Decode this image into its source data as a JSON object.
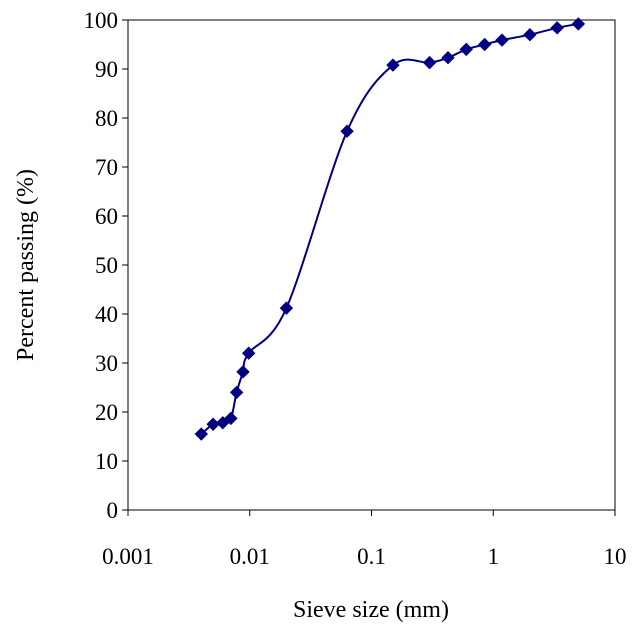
{
  "chart_data": {
    "type": "scatter",
    "title": "",
    "xlabel": "Sieve size (mm)",
    "ylabel": "Percent passing (%)",
    "x_scale": "log",
    "xlim": [
      0.001,
      10
    ],
    "ylim": [
      0,
      100
    ],
    "x_ticks": [
      0.001,
      0.01,
      0.1,
      1,
      10
    ],
    "x_tick_labels": [
      "0.001",
      "0.01",
      "0.1",
      "1",
      "10"
    ],
    "y_ticks": [
      0,
      10,
      20,
      30,
      40,
      50,
      60,
      70,
      80,
      90,
      100
    ],
    "y_tick_labels": [
      "0",
      "10",
      "20",
      "30",
      "40",
      "50",
      "60",
      "70",
      "80",
      "90",
      "100"
    ],
    "grid": false,
    "legend": "none",
    "marker": "diamond",
    "smooth_line": true,
    "series": [
      {
        "color": "#000080",
        "points": [
          {
            "x": 0.004,
            "y": 15.5
          },
          {
            "x": 0.005,
            "y": 17.5
          },
          {
            "x": 0.006,
            "y": 17.8
          },
          {
            "x": 0.007,
            "y": 18.7
          },
          {
            "x": 0.0078,
            "y": 24.0
          },
          {
            "x": 0.0088,
            "y": 28.2
          },
          {
            "x": 0.0098,
            "y": 32.0
          },
          {
            "x": 0.02,
            "y": 41.2
          },
          {
            "x": 0.063,
            "y": 77.3
          },
          {
            "x": 0.15,
            "y": 90.8
          },
          {
            "x": 0.3,
            "y": 91.3
          },
          {
            "x": 0.425,
            "y": 92.3
          },
          {
            "x": 0.6,
            "y": 94.0
          },
          {
            "x": 0.85,
            "y": 95.0
          },
          {
            "x": 1.18,
            "y": 95.9
          },
          {
            "x": 2.0,
            "y": 97.0
          },
          {
            "x": 3.35,
            "y": 98.4
          },
          {
            "x": 5.0,
            "y": 99.2
          }
        ]
      }
    ]
  }
}
